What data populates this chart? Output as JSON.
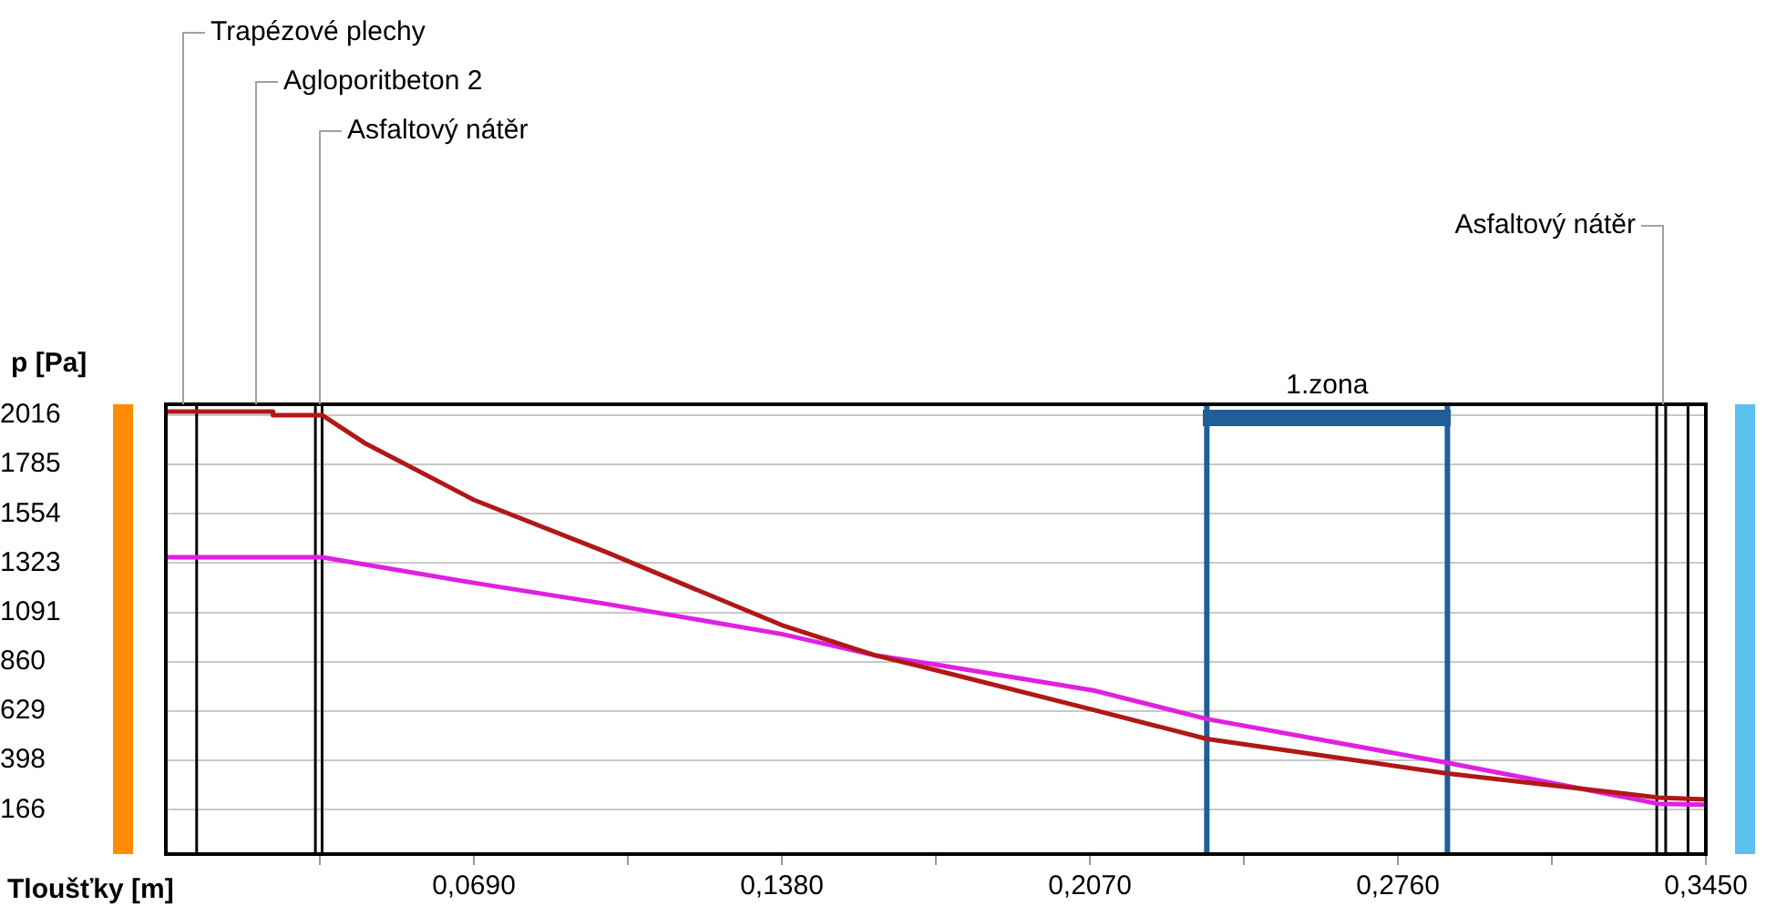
{
  "chart_data": {
    "type": "line",
    "xlabel": "Tloušťky [m]",
    "ylabel": "p [Pa]",
    "series": [
      {
        "color": "#b01818",
        "x": [
          0,
          0.024,
          0.024,
          0.035,
          0.0445,
          0.069,
          0.0988,
          0.138,
          0.159,
          0.1723,
          0.2078,
          0.2332,
          0.2871,
          0.3344,
          0.345
        ],
        "values": [
          2033,
          2033,
          2016,
          2016,
          1886,
          1619,
          1373,
          1032,
          890,
          822,
          635,
          499,
          337,
          224,
          215
        ]
      },
      {
        "color": "#e020e0",
        "x": [
          0,
          0.035,
          0.069,
          0.0988,
          0.138,
          0.159,
          0.1723,
          0.2078,
          0.2332,
          0.2871,
          0.3344,
          0.345
        ],
        "values": [
          1350,
          1350,
          1230,
          1131,
          990,
          890,
          848,
          726,
          592,
          387,
          195,
          190
        ]
      }
    ],
    "xlim": [
      0,
      0.345
    ],
    "ylim": [
      -41,
      2067
    ],
    "xticks": [
      {
        "value": 0.0345,
        "label": null
      },
      {
        "value": 0.069,
        "label": "0,0690"
      },
      {
        "value": 0.1035,
        "label": null
      },
      {
        "value": 0.138,
        "label": "0,1380"
      },
      {
        "value": 0.1725,
        "label": null
      },
      {
        "value": 0.207,
        "label": "0,2070"
      },
      {
        "value": 0.2415,
        "label": null
      },
      {
        "value": 0.276,
        "label": "0,2760"
      },
      {
        "value": 0.3105,
        "label": null
      },
      {
        "value": 0.345,
        "label": "0,3450"
      }
    ],
    "yticks": [
      166,
      398,
      629,
      860,
      1091,
      1323,
      1554,
      1785,
      2016
    ],
    "grid": "y",
    "legend": false,
    "marker": "none",
    "line_style": "solid",
    "ref_lines": [
      {
        "axis": "x",
        "value": 0.0069,
        "color": "#000000"
      },
      {
        "axis": "x",
        "value": 0.0335,
        "color": "#000000"
      },
      {
        "axis": "x",
        "value": 0.035,
        "color": "#000000"
      },
      {
        "axis": "x",
        "value": 0.334,
        "color": "#000000"
      },
      {
        "axis": "x",
        "value": 0.336,
        "color": "#000000"
      },
      {
        "axis": "x",
        "value": 0.341,
        "color": "#000000"
      },
      {
        "axis": "x",
        "value": 0.2332,
        "color": "#1f5f96"
      },
      {
        "axis": "x",
        "value": 0.2871,
        "color": "#1f5f96"
      }
    ],
    "annotations": [
      "1.zona",
      "Trapézové plechy",
      "Agloporitbeton 2",
      "Asfaltový nátěr",
      "Asfaltový nátěr"
    ]
  }
}
